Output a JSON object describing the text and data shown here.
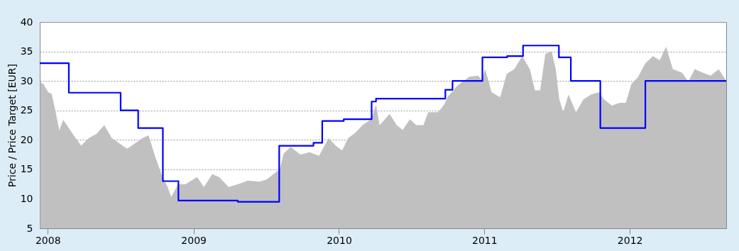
{
  "chart_data": {
    "type": "area",
    "ylabel": "Price / Price Target [EUR]",
    "xlim": [
      "2007-12-12",
      "2012-08-30"
    ],
    "xticks": [
      {
        "value": "2008-01-01",
        "label": "2008"
      },
      {
        "value": "2009-01-01",
        "label": "2009"
      },
      {
        "value": "2010-01-01",
        "label": "2010"
      },
      {
        "value": "2011-01-01",
        "label": "2011"
      },
      {
        "value": "2012-01-01",
        "label": "2012"
      }
    ],
    "ylim": [
      5,
      40
    ],
    "yticks": [
      5,
      10,
      15,
      20,
      25,
      30,
      35,
      40
    ],
    "grid": "y",
    "series": [
      {
        "color": "#c0c0c0",
        "x": [
          "2007-12-13",
          "2007-12-22",
          "2008-01-02",
          "2008-01-11",
          "2008-01-21",
          "2008-01-30",
          "2008-02-09",
          "2008-02-18",
          "2008-03-06",
          "2008-03-25",
          "2008-04-13",
          "2008-05-02",
          "2008-05-22",
          "2008-06-10",
          "2008-06-29",
          "2008-07-18",
          "2008-08-07",
          "2008-08-26",
          "2008-09-10",
          "2008-09-26",
          "2008-10-15",
          "2008-10-28",
          "2008-11-06",
          "2008-11-23",
          "2008-12-12",
          "2009-01-10",
          "2009-01-27",
          "2009-02-17",
          "2009-03-06",
          "2009-03-30",
          "2009-04-23",
          "2009-05-17",
          "2009-06-16",
          "2009-07-04",
          "2009-07-28",
          "2009-08-06",
          "2009-08-15",
          "2009-09-02",
          "2009-09-26",
          "2009-10-19",
          "2009-11-12",
          "2009-12-06",
          "2009-12-24",
          "2010-01-09",
          "2010-01-24",
          "2010-02-11",
          "2010-03-01",
          "2010-03-23",
          "2010-04-04",
          "2010-04-13",
          "2010-05-08",
          "2010-05-26",
          "2010-06-10",
          "2010-06-28",
          "2010-07-14",
          "2010-08-01",
          "2010-08-13",
          "2010-09-07",
          "2010-09-22",
          "2010-10-01",
          "2010-10-25",
          "2010-11-24",
          "2010-12-16",
          "2010-12-25",
          "2011-01-03",
          "2011-01-19",
          "2011-02-07",
          "2011-02-10",
          "2011-02-26",
          "2011-03-17",
          "2011-04-06",
          "2011-04-25",
          "2011-05-08",
          "2011-05-21",
          "2011-06-03",
          "2011-06-19",
          "2011-06-29",
          "2011-07-08",
          "2011-07-18",
          "2011-07-31",
          "2011-08-19",
          "2011-09-07",
          "2011-09-26",
          "2011-10-16",
          "2011-10-28",
          "2011-11-17",
          "2011-12-06",
          "2011-12-22",
          "2012-01-05",
          "2012-01-21",
          "2012-02-09",
          "2012-02-28",
          "2012-03-16",
          "2012-04-01",
          "2012-04-18",
          "2012-05-11",
          "2012-05-27",
          "2012-06-12",
          "2012-07-02",
          "2012-07-22",
          "2012-08-11",
          "2012-08-30"
        ],
        "values": [
          29.9,
          29.4,
          28.1,
          27.8,
          24.7,
          21.6,
          23.4,
          22.5,
          20.8,
          19.0,
          20.3,
          21.0,
          22.5,
          20.3,
          19.4,
          18.5,
          19.4,
          20.3,
          20.8,
          17.3,
          13.7,
          12.0,
          10.3,
          12.5,
          12.5,
          13.7,
          12.0,
          14.2,
          13.7,
          12.0,
          12.5,
          13.1,
          12.9,
          13.3,
          14.6,
          15.1,
          17.7,
          18.8,
          17.5,
          17.9,
          17.3,
          20.3,
          19.0,
          18.2,
          20.3,
          21.2,
          22.5,
          23.5,
          26.0,
          22.5,
          24.4,
          22.5,
          21.7,
          23.5,
          22.5,
          22.5,
          24.7,
          24.7,
          26.0,
          27.3,
          29.2,
          30.7,
          30.9,
          30.2,
          32.0,
          28.1,
          27.3,
          27.3,
          31.2,
          32.0,
          34.2,
          32.0,
          28.4,
          28.4,
          34.6,
          35.0,
          32.0,
          26.9,
          24.7,
          27.7,
          24.7,
          26.9,
          27.7,
          28.1,
          26.9,
          25.8,
          26.3,
          26.3,
          29.5,
          30.6,
          33.0,
          34.2,
          33.5,
          35.8,
          32.0,
          31.4,
          29.9,
          32.0,
          31.4,
          30.9,
          32.0,
          30.0
        ]
      },
      {
        "type": "step",
        "color": "#0000ff",
        "x": [
          "2007-12-12",
          "2008-02-23",
          "2008-07-02",
          "2008-08-15",
          "2008-10-16",
          "2008-11-24",
          "2009-04-22",
          "2009-08-04",
          "2009-10-29",
          "2009-11-20",
          "2010-01-13",
          "2010-03-24",
          "2010-04-04",
          "2010-09-25",
          "2010-10-13",
          "2010-12-27",
          "2011-02-27",
          "2011-04-08",
          "2011-07-07",
          "2011-08-06",
          "2011-10-19",
          "2012-02-09",
          "2012-08-30"
        ],
        "values": [
          33,
          28,
          25,
          22,
          13,
          9.7,
          9.5,
          19,
          19.5,
          23.2,
          23.5,
          26.5,
          27,
          28.5,
          30,
          34,
          34.2,
          36,
          34,
          30,
          22,
          30,
          30
        ]
      }
    ]
  }
}
